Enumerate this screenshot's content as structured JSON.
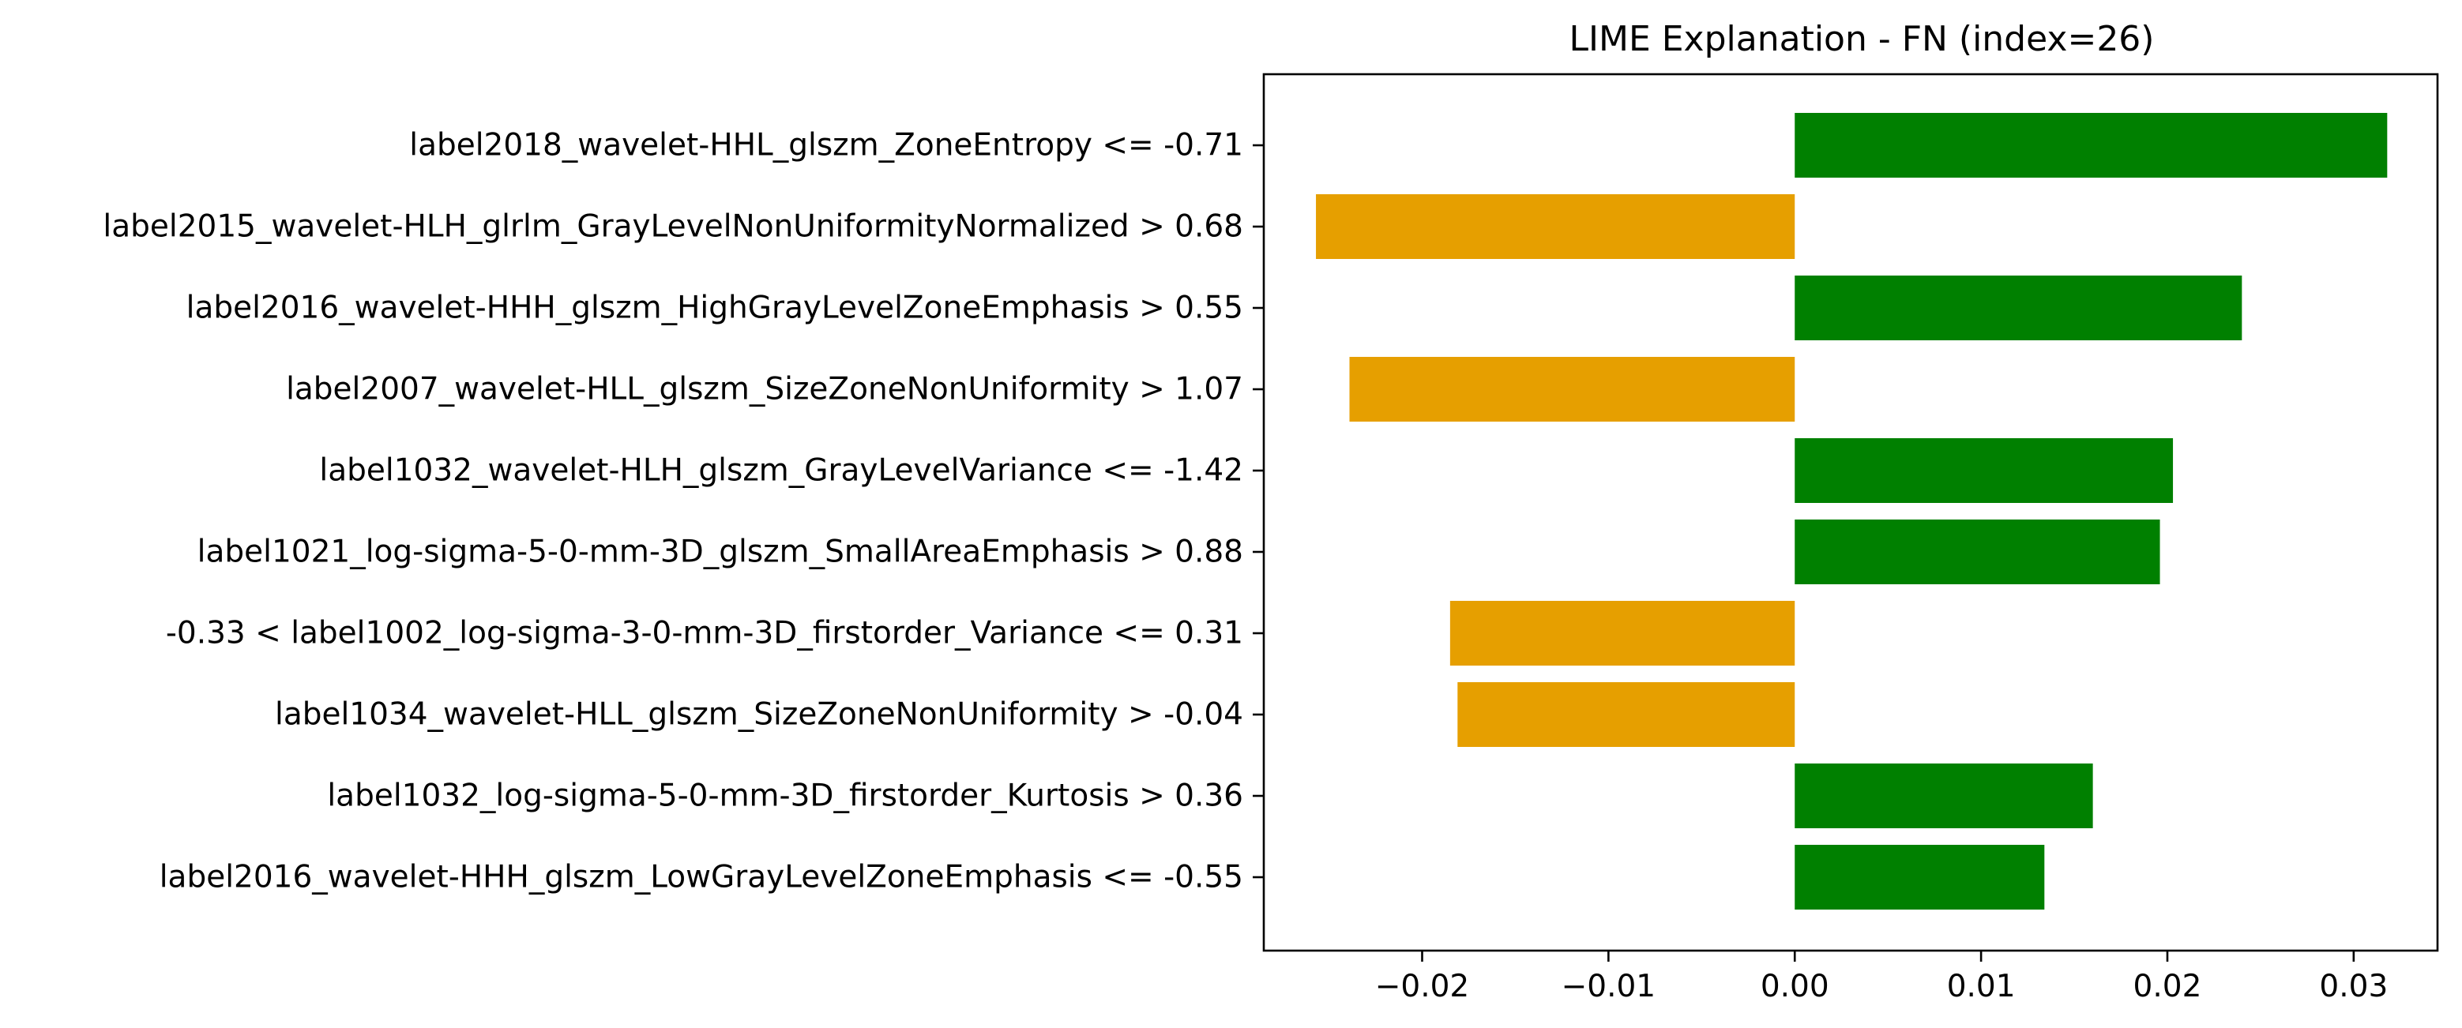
{
  "chart_data": {
    "type": "bar",
    "orientation": "horizontal",
    "title": "LIME Explanation - FN (index=26)",
    "xlabel": "",
    "ylabel": "",
    "xlim": [
      -0.0285,
      0.0345
    ],
    "xticks": [
      -0.02,
      -0.01,
      0.0,
      0.01,
      0.02,
      0.03
    ],
    "xtick_labels": [
      "−0.02",
      "−0.01",
      "0.00",
      "0.01",
      "0.02",
      "0.03"
    ],
    "grid": false,
    "legend": "none",
    "categories": [
      "label2018_wavelet-HHL_glszm_ZoneEntropy <= -0.71",
      "label2015_wavelet-HLH_glrlm_GrayLevelNonUniformityNormalized > 0.68",
      "label2016_wavelet-HHH_glszm_HighGrayLevelZoneEmphasis > 0.55",
      "label2007_wavelet-HLL_glszm_SizeZoneNonUniformity > 1.07",
      "label1032_wavelet-HLH_glszm_GrayLevelVariance <= -1.42",
      "label1021_log-sigma-5-0-mm-3D_glszm_SmallAreaEmphasis > 0.88",
      "-0.33 < label1002_log-sigma-3-0-mm-3D_firstorder_Variance <= 0.31",
      "label1034_wavelet-HLL_glszm_SizeZoneNonUniformity > -0.04",
      "label1032_log-sigma-5-0-mm-3D_firstorder_Kurtosis > 0.36",
      "label2016_wavelet-HHH_glszm_LowGrayLevelZoneEmphasis <= -0.55"
    ],
    "values": [
      0.0318,
      -0.0257,
      0.024,
      -0.0239,
      0.0203,
      0.0196,
      -0.0185,
      -0.0181,
      0.016,
      0.0134
    ],
    "colors": {
      "positive": "#008000",
      "negative": "#e69f00"
    }
  }
}
